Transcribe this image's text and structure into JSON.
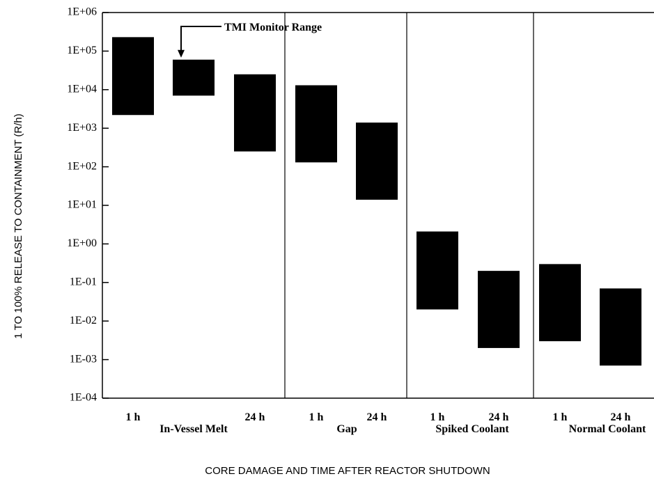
{
  "chart_data": {
    "type": "bar",
    "title": "",
    "ylabel": "1 TO 100% RELEASE TO CONTAINMENT (R/h)",
    "xlabel": "CORE DAMAGE AND TIME AFTER REACTOR SHUTDOWN",
    "y_scale": "log",
    "ylim": [
      0.0001,
      1000000
    ],
    "y_ticks": [
      {
        "value": 0.0001,
        "label": "1E-04"
      },
      {
        "value": 0.001,
        "label": "1E-03"
      },
      {
        "value": 0.01,
        "label": "1E-02"
      },
      {
        "value": 0.1,
        "label": "1E-01"
      },
      {
        "value": 1,
        "label": "1E+00"
      },
      {
        "value": 10,
        "label": "1E+01"
      },
      {
        "value": 100,
        "label": "1E+02"
      },
      {
        "value": 1000,
        "label": "1E+03"
      },
      {
        "value": 10000,
        "label": "1E+04"
      },
      {
        "value": 100000,
        "label": "1E+05"
      },
      {
        "value": 1000000,
        "label": "1E+06"
      }
    ],
    "groups": [
      {
        "name": "In-Vessel Melt",
        "bars": [
          {
            "label": "1 h",
            "low": 2200,
            "high": 230000
          },
          {
            "label": "",
            "low": 7000,
            "high": 60000
          },
          {
            "label": "24 h",
            "low": 250,
            "high": 25000
          }
        ]
      },
      {
        "name": "Gap",
        "bars": [
          {
            "label": "1 h",
            "low": 130,
            "high": 13000
          },
          {
            "label": "24 h",
            "low": 14,
            "high": 1400
          }
        ]
      },
      {
        "name": "Spiked Coolant",
        "bars": [
          {
            "label": "1 h",
            "low": 0.02,
            "high": 2.1
          },
          {
            "label": "24 h",
            "low": 0.002,
            "high": 0.2
          }
        ]
      },
      {
        "name": "Normal Coolant",
        "bars": [
          {
            "label": "1 h",
            "low": 0.003,
            "high": 0.3
          },
          {
            "label": "24 h",
            "low": 0.0007,
            "high": 0.07
          }
        ]
      }
    ],
    "annotation": {
      "text": "TMI Monitor Range",
      "group": 0,
      "bar": 1
    },
    "grid": false,
    "colors": {
      "bar": "#000000",
      "axis": "#000000"
    }
  }
}
